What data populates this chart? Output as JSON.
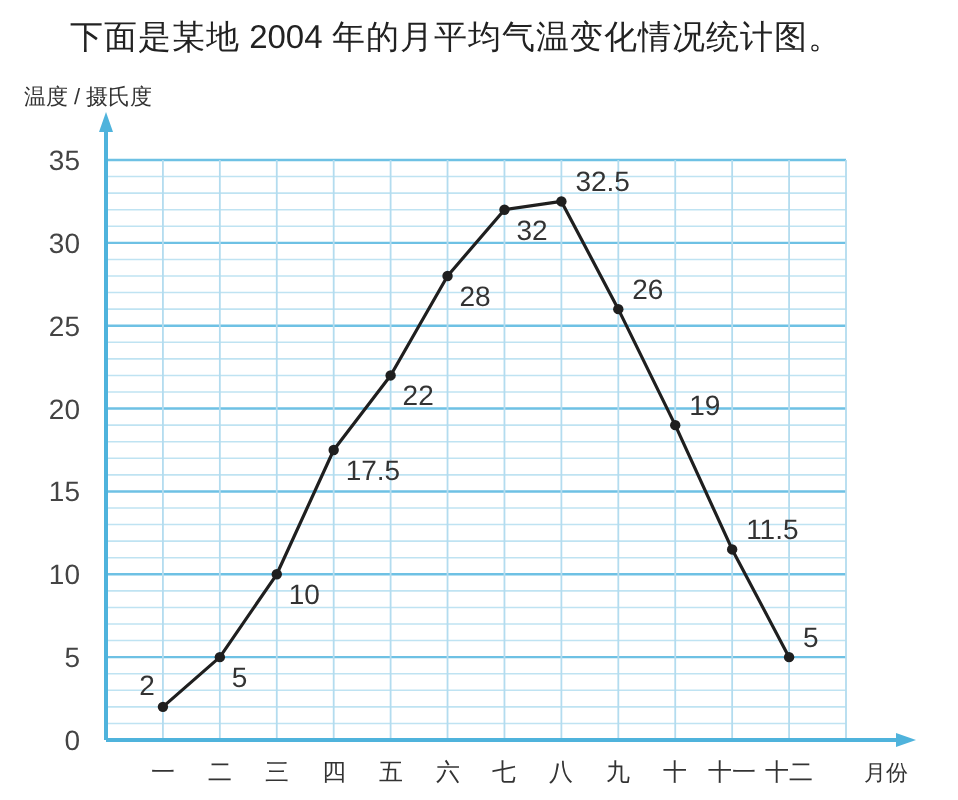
{
  "chart_data": {
    "type": "line",
    "title": "下面是某地 2004 年的月平均气温变化情况统计图。",
    "xlabel": "月份",
    "ylabel": "温度 / 摄氏度",
    "categories": [
      "一",
      "二",
      "三",
      "四",
      "五",
      "六",
      "七",
      "八",
      "九",
      "十",
      "十一",
      "十二"
    ],
    "series": [
      {
        "color": "#1f1f1f",
        "values": [
          2,
          5,
          10,
          17.5,
          22,
          28,
          32,
          32.5,
          26,
          19,
          11.5,
          5
        ]
      }
    ],
    "ylim": [
      0,
      35
    ],
    "yticks": [
      0,
      {
        "value": 1,
        "label": null
      },
      {
        "value": 2,
        "label": null
      },
      {
        "value": 3,
        "label": null
      },
      {
        "value": 4,
        "label": null
      },
      5,
      {
        "value": 6,
        "label": null
      },
      {
        "value": 7,
        "label": null
      },
      {
        "value": 8,
        "label": null
      },
      {
        "value": 9,
        "label": null
      },
      10,
      {
        "value": 11,
        "label": null
      },
      {
        "value": 12,
        "label": null
      },
      {
        "value": 13,
        "label": null
      },
      {
        "value": 14,
        "label": null
      },
      15,
      {
        "value": 16,
        "label": null
      },
      {
        "value": 17,
        "label": null
      },
      {
        "value": 18,
        "label": null
      },
      {
        "value": 19,
        "label": null
      },
      20,
      {
        "value": 21,
        "label": null
      },
      {
        "value": 22,
        "label": null
      },
      {
        "value": 23,
        "label": null
      },
      {
        "value": 24,
        "label": null
      },
      25,
      {
        "value": 26,
        "label": null
      },
      {
        "value": 27,
        "label": null
      },
      {
        "value": 28,
        "label": null
      },
      {
        "value": 29,
        "label": null
      },
      30,
      {
        "value": 31,
        "label": null
      },
      {
        "value": 32,
        "label": null
      },
      {
        "value": 33,
        "label": null
      },
      {
        "value": 34,
        "label": null
      },
      35
    ],
    "grid": true,
    "marker": "circle",
    "line_style": "solid",
    "data_labels": true
  }
}
